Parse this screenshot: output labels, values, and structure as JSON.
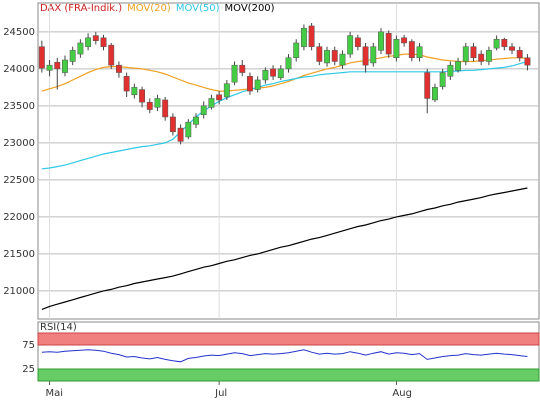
{
  "chart_data": {
    "type": "candlestick",
    "legend": [
      {
        "name": "DAX (FRA-Indik.)",
        "color": "#cc2222"
      },
      {
        "name": "MOV(20)",
        "color": "#f0a020"
      },
      {
        "name": "MOV(50)",
        "color": "#30c8e8"
      },
      {
        "name": "MOV(200)",
        "color": "#000000"
      }
    ],
    "up_color": "#44cc44",
    "down_color": "#e03030",
    "xlim": [
      -0.5,
      64.5
    ],
    "xticks": [
      {
        "value": 1,
        "label": "Mai"
      },
      {
        "value": 23,
        "label": "Jul"
      },
      {
        "value": 46,
        "label": "Aug"
      }
    ],
    "ylim": [
      20620,
      24890
    ],
    "yticks": [
      21000,
      21500,
      22000,
      22500,
      23000,
      23500,
      24000,
      24500
    ],
    "grid": true,
    "open": [
      24300,
      23980,
      24090,
      23950,
      24100,
      24200,
      24300,
      24450,
      24420,
      24320,
      24050,
      23900,
      23650,
      23720,
      23550,
      23480,
      23580,
      23350,
      23200,
      23080,
      23250,
      23380,
      23480,
      23650,
      23620,
      23820,
      24050,
      23900,
      23720,
      23850,
      24000,
      23880,
      24000,
      24150,
      24300,
      24580,
      24300,
      24080,
      24250,
      24050,
      24200,
      24420,
      24300,
      24080,
      24250,
      24480,
      24150,
      24420,
      24370,
      24150,
      23950,
      23580,
      23760,
      23900,
      23980,
      24100,
      24300,
      24200,
      24100,
      24280,
      24400,
      24300,
      24250,
      24150
    ],
    "high": [
      24380,
      24120,
      24150,
      24180,
      24300,
      24400,
      24480,
      24500,
      24460,
      24350,
      24100,
      23950,
      23800,
      23760,
      23600,
      23650,
      23620,
      23400,
      23250,
      23320,
      23400,
      23560,
      23650,
      23700,
      23850,
      24100,
      24120,
      23950,
      23900,
      24020,
      24050,
      24050,
      24200,
      24400,
      24600,
      24620,
      24350,
      24300,
      24300,
      24250,
      24500,
      24460,
      24350,
      24350,
      24550,
      24520,
      24450,
      24460,
      24400,
      24350,
      24000,
      23800,
      24000,
      24100,
      24150,
      24350,
      24350,
      24250,
      24300,
      24450,
      24420,
      24350,
      24300,
      24200
    ],
    "low": [
      23950,
      23900,
      23720,
      23900,
      24050,
      24150,
      24250,
      24330,
      24250,
      24000,
      23880,
      23620,
      23600,
      23480,
      23400,
      23430,
      23300,
      23100,
      22980,
      23050,
      23200,
      23330,
      23450,
      23520,
      23580,
      23780,
      23900,
      23650,
      23680,
      23800,
      23850,
      23850,
      23950,
      24100,
      24250,
      24250,
      24050,
      24030,
      24050,
      24000,
      24150,
      24250,
      23950,
      24030,
      24200,
      24150,
      24100,
      24300,
      24100,
      24100,
      23400,
      23550,
      23720,
      23850,
      23950,
      24050,
      24100,
      24050,
      24050,
      24250,
      24250,
      24200,
      24100,
      23980
    ],
    "close": [
      24010,
      24050,
      24000,
      24120,
      24250,
      24350,
      24420,
      24380,
      24300,
      24050,
      23950,
      23700,
      23750,
      23550,
      23450,
      23600,
      23350,
      23150,
      23020,
      23280,
      23350,
      23500,
      23600,
      23580,
      23800,
      24050,
      23950,
      23700,
      23850,
      23980,
      23900,
      24000,
      24150,
      24350,
      24550,
      24300,
      24100,
      24250,
      24100,
      24200,
      24450,
      24300,
      24050,
      24300,
      24500,
      24200,
      24400,
      24350,
      24150,
      24300,
      23600,
      23750,
      23950,
      24050,
      24100,
      24300,
      24150,
      24100,
      24250,
      24400,
      24300,
      24250,
      24150,
      24050
    ],
    "series": [
      {
        "name": "MOV(20)",
        "color": "#f0a020",
        "values": [
          23700,
          23730,
          23760,
          23800,
          23850,
          23900,
          23950,
          23990,
          24020,
          24030,
          24030,
          24020,
          24010,
          24000,
          23980,
          23960,
          23930,
          23890,
          23850,
          23810,
          23780,
          23750,
          23720,
          23700,
          23700,
          23710,
          23720,
          23730,
          23740,
          23750,
          23770,
          23800,
          23830,
          23870,
          23910,
          23940,
          23970,
          24000,
          24020,
          24050,
          24080,
          24100,
          24110,
          24130,
          24150,
          24170,
          24180,
          24200,
          24200,
          24190,
          24160,
          24140,
          24120,
          24110,
          24100,
          24100,
          24100,
          24110,
          24120,
          24130,
          24140,
          24150,
          24150,
          24140
        ]
      },
      {
        "name": "MOV(50)",
        "color": "#30c8e8",
        "values": [
          22650,
          22660,
          22680,
          22700,
          22730,
          22760,
          22790,
          22820,
          22850,
          22870,
          22890,
          22910,
          22930,
          22950,
          22960,
          22980,
          23000,
          23050,
          23150,
          23250,
          23350,
          23430,
          23500,
          23560,
          23610,
          23650,
          23690,
          23720,
          23750,
          23780,
          23800,
          23830,
          23850,
          23870,
          23890,
          23900,
          23920,
          23930,
          23940,
          23950,
          23960,
          23960,
          23960,
          23960,
          23960,
          23960,
          23960,
          23960,
          23960,
          23960,
          23960,
          23960,
          23960,
          23970,
          23970,
          23980,
          23980,
          23990,
          24000,
          24010,
          24020,
          24040,
          24070,
          24100
        ]
      },
      {
        "name": "MOV(200)",
        "color": "#000000",
        "values": [
          20750,
          20790,
          20820,
          20850,
          20880,
          20910,
          20940,
          20970,
          21000,
          21020,
          21050,
          21070,
          21100,
          21120,
          21140,
          21160,
          21180,
          21200,
          21230,
          21260,
          21290,
          21320,
          21340,
          21370,
          21400,
          21420,
          21450,
          21480,
          21500,
          21530,
          21560,
          21590,
          21610,
          21640,
          21670,
          21700,
          21720,
          21750,
          21780,
          21810,
          21840,
          21870,
          21890,
          21920,
          21950,
          21970,
          22000,
          22020,
          22040,
          22070,
          22100,
          22120,
          22150,
          22170,
          22200,
          22220,
          22240,
          22260,
          22290,
          22310,
          22330,
          22350,
          22370,
          22390
        ]
      }
    ],
    "rsi": {
      "label": "RSI(14)",
      "color": "#2233cc",
      "ylim": [
        0,
        100
      ],
      "yticks": [
        25,
        75
      ],
      "overbought_color": "#f08080",
      "oversold_color": "#66cc66",
      "values": [
        60,
        61,
        60,
        62,
        63,
        64,
        65,
        64,
        62,
        58,
        55,
        50,
        51,
        48,
        46,
        49,
        45,
        42,
        40,
        47,
        49,
        52,
        54,
        53,
        56,
        59,
        57,
        53,
        55,
        57,
        56,
        57,
        59,
        62,
        65,
        60,
        56,
        58,
        56,
        57,
        61,
        58,
        54,
        58,
        61,
        56,
        59,
        58,
        55,
        57,
        45,
        48,
        51,
        53,
        54,
        57,
        55,
        54,
        56,
        58,
        56,
        55,
        53,
        51
      ]
    }
  }
}
